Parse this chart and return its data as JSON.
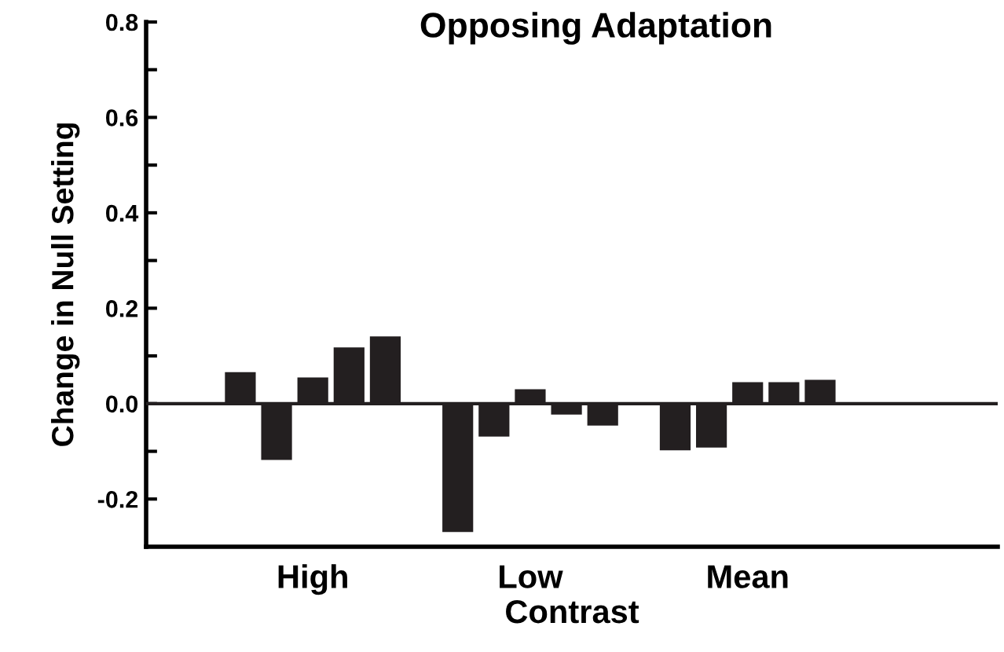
{
  "chart_data": {
    "type": "bar",
    "title": "Opposing Adaptation",
    "xlabel": "Contrast",
    "ylabel": "Change in Null Setting",
    "categories": [
      null,
      null,
      "High",
      null,
      null,
      null,
      null,
      null,
      "Low",
      null,
      null,
      null,
      null,
      null,
      "Mean",
      null,
      null
    ],
    "values": [
      0.066,
      -0.118,
      0.055,
      0.118,
      0.141,
      null,
      -0.269,
      -0.069,
      0.03,
      -0.023,
      -0.046,
      null,
      -0.098,
      -0.092,
      0.045,
      0.045,
      0.05
    ],
    "color": "#231f20",
    "ylim": [
      -0.3,
      0.8
    ],
    "yticks": [
      -0.2,
      {
        "value": 0,
        "label": "0.0"
      },
      0.2,
      0.4,
      0.6,
      0.8
    ],
    "ref_lines": [
      {
        "axis": "y",
        "value": 0,
        "color": "#231f20"
      }
    ],
    "grid": false
  }
}
